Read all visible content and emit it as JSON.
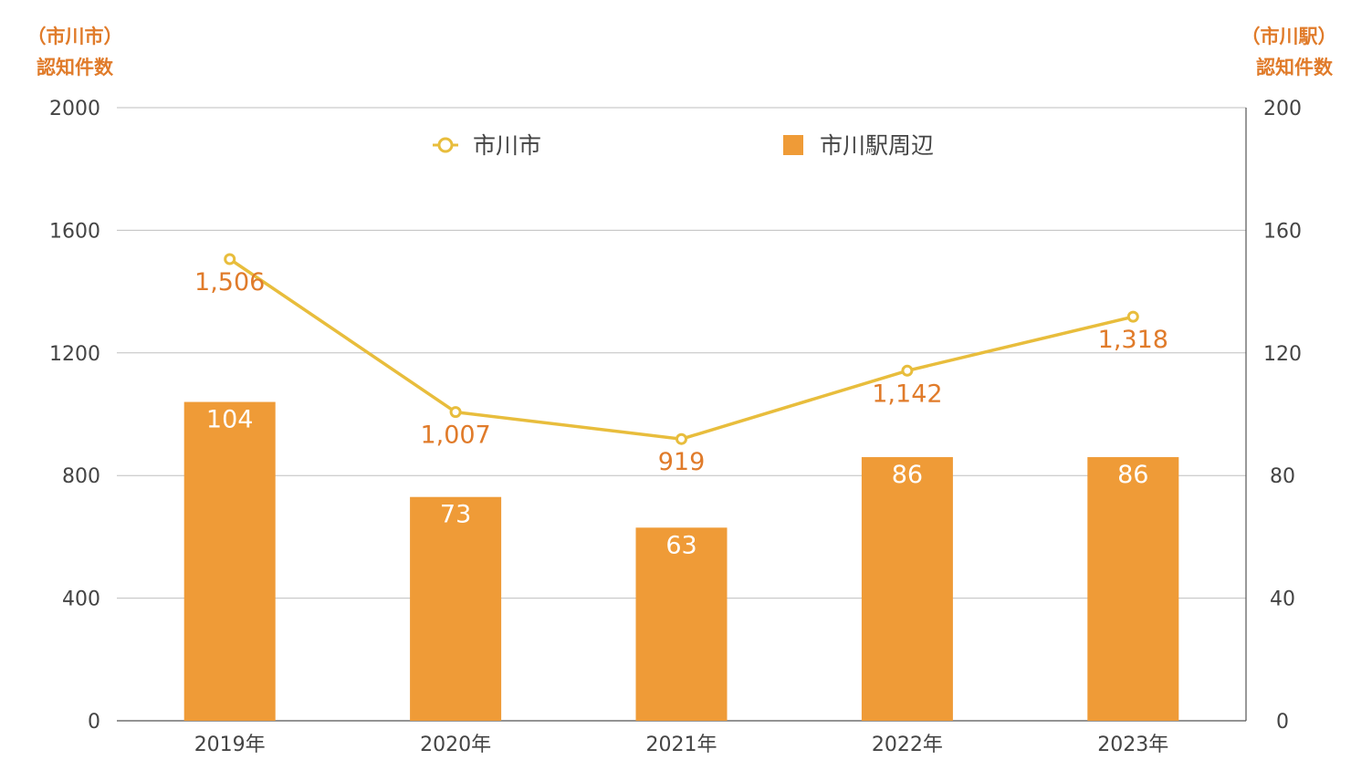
{
  "chart_data": {
    "type": "bar",
    "categories": [
      "2019年",
      "2020年",
      "2021年",
      "2022年",
      "2023年"
    ],
    "series": [
      {
        "name": "市川駅周辺",
        "type": "bar",
        "axis": "right",
        "values": [
          104,
          73,
          63,
          86,
          86
        ],
        "labels": [
          "104",
          "73",
          "63",
          "86",
          "86"
        ],
        "color": "#ef9b37"
      },
      {
        "name": "市川市",
        "type": "line",
        "axis": "left",
        "values": [
          1506,
          1007,
          919,
          1142,
          1318
        ],
        "labels": [
          "1,506",
          "1,007",
          "919",
          "1,142",
          "1,318"
        ],
        "color": "#e8bd3c"
      }
    ],
    "left_axis": {
      "title_line1": "（市川市）",
      "title_line2": "認知件数",
      "ylim": [
        0,
        2000
      ],
      "ticks": [
        "0",
        "400",
        "800",
        "1200",
        "1600",
        "2000"
      ]
    },
    "right_axis": {
      "title_line1": "（市川駅）",
      "title_line2": "認知件数",
      "ylim": [
        0,
        200
      ],
      "ticks": [
        "0",
        "40",
        "80",
        "120",
        "160",
        "200"
      ]
    },
    "grid": true,
    "legend_position": "top",
    "label_color": "#e07b2a"
  }
}
